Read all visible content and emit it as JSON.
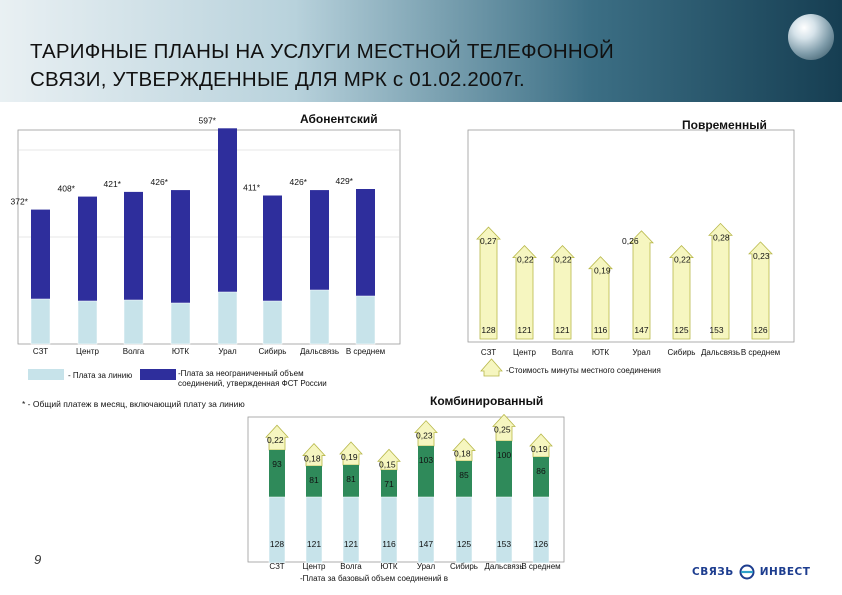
{
  "slide": {
    "title": "ТАРИФНЫЕ ПЛАНЫ НА УСЛУГИ МЕСТНОЙ ТЕЛЕФОННОЙ СВЯЗИ, УТВЕРЖДЕННЫЕ ДЛЯ МРК с 01.02.2007г.",
    "page_number": "9",
    "logo_left": "СВЯЗЬ",
    "logo_right": "ИНВЕСТ"
  },
  "colors": {
    "base_fill": "#c7e3ea",
    "abonent_fill": "#2e2e9c",
    "combined_fill": "#2f8a5a",
    "arrow_fill": "#f6f6c0",
    "arrow_stroke": "#b8b84a"
  },
  "chart_data": [
    {
      "type": "bar",
      "title": "Абонентский",
      "categories": [
        "СЗТ",
        "Центр",
        "Волга",
        "ЮТК",
        "Урал",
        "Сибирь",
        "Дальсвязь",
        "В среднем"
      ],
      "series": [
        {
          "name": "- Плата за линию",
          "values": [
            null,
            null,
            null,
            null,
            null,
            null,
            null,
            null
          ]
        },
        {
          "name": "-Плата за неограниченный объем соединений, утвержденная ФСТ России",
          "values": [
            null,
            null,
            null,
            null,
            null,
            null,
            null,
            null
          ]
        }
      ],
      "totals": [
        372,
        408,
        421,
        426,
        597,
        411,
        426,
        429
      ],
      "total_labels": [
        "372*",
        "408*",
        "421*",
        "426*",
        "597*",
        "411*",
        "426*",
        "429*"
      ],
      "footnote": "* - Общий платеж в месяц, включающий плату за линию"
    },
    {
      "type": "bar",
      "title": "Повременный",
      "categories": [
        "СЗТ",
        "Центр",
        "Волга",
        "ЮТК",
        "Урал",
        "Сибирь",
        "Дальсвязь",
        "В среднем"
      ],
      "series": [
        {
          "name": "",
          "values": [
            128,
            121,
            121,
            116,
            147,
            125,
            153,
            126
          ]
        },
        {
          "name": "-Стоимость минуты местного соединения",
          "values": [
            0.27,
            0.22,
            0.22,
            0.19,
            0.26,
            0.22,
            0.28,
            0.23
          ]
        }
      ],
      "value_labels": [
        "0,27",
        "0,22",
        "0,22",
        "0,19",
        "0,26",
        "0,22",
        "0,28",
        "0,23"
      ]
    },
    {
      "type": "bar",
      "title": "Комбинированный",
      "categories": [
        "СЗТ",
        "Центр",
        "Волга",
        "ЮТК",
        "Урал",
        "Сибирь",
        "Дальсвязь",
        "В среднем"
      ],
      "series": [
        {
          "name": "-Плата за базовый объем соединений в",
          "values": [
            128,
            121,
            121,
            116,
            147,
            125,
            153,
            126
          ]
        },
        {
          "name": "",
          "values": [
            93,
            81,
            81,
            71,
            103,
            85,
            100,
            86
          ]
        },
        {
          "name": "",
          "values": [
            0.22,
            0.18,
            0.19,
            0.15,
            0.23,
            0.18,
            0.25,
            0.19
          ]
        }
      ],
      "value_labels": [
        "0,22",
        "0,18",
        "0,19",
        "0,15",
        "0,23",
        "0,18",
        "0,25",
        "0,19"
      ]
    }
  ]
}
